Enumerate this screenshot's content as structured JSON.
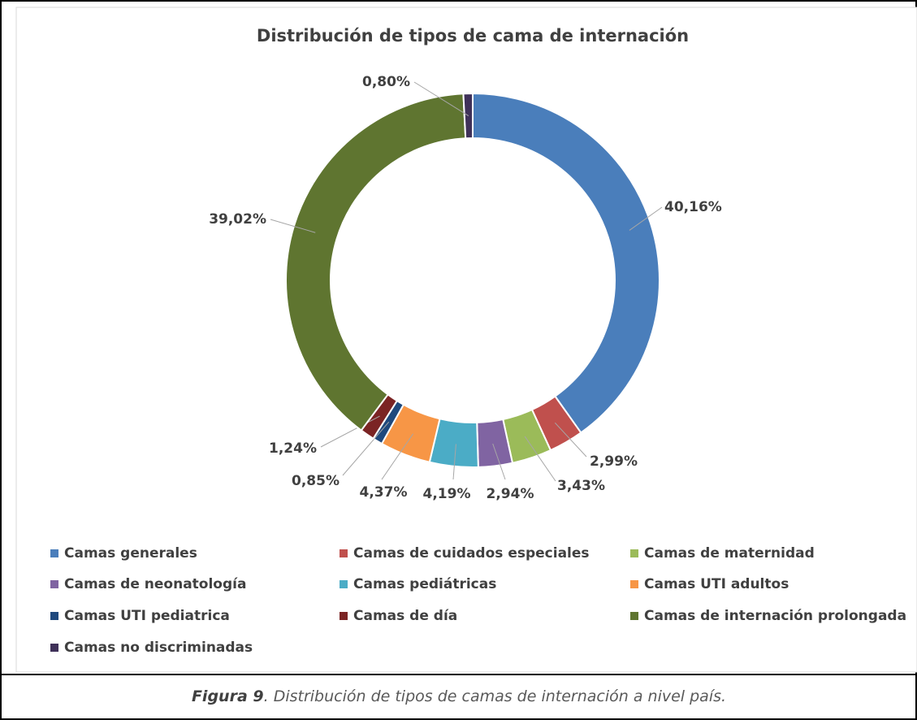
{
  "chart_data": {
    "type": "donut",
    "title": "Distribución de tipos de cama de internación",
    "categories": [
      "Camas generales",
      "Camas de cuidados especiales",
      "Camas de maternidad",
      "Camas de neonatología",
      "Camas pediátricas",
      "Camas UTI adultos",
      "Camas UTI pediatrica",
      "Camas de día",
      "Camas de internación prolongada",
      "Camas no discriminadas"
    ],
    "values": [
      40.16,
      2.99,
      3.43,
      2.94,
      4.19,
      4.37,
      0.85,
      1.24,
      39.02,
      0.8
    ],
    "value_labels": [
      "40,16%",
      "2,99%",
      "3,43%",
      "2,94%",
      "4,19%",
      "4,37%",
      "0,85%",
      "1,24%",
      "39,02%",
      "0,80%"
    ],
    "colors": [
      "#4a7ebb",
      "#c0504d",
      "#9bbb59",
      "#8064a2",
      "#4bacc6",
      "#f79646",
      "#1f497d",
      "#7b2424",
      "#5f7530",
      "#3f3159"
    ],
    "legend": "bottom"
  },
  "caption": {
    "label": "Figura 9",
    "text": ". Distribución de tipos de camas de internación a nivel país."
  }
}
